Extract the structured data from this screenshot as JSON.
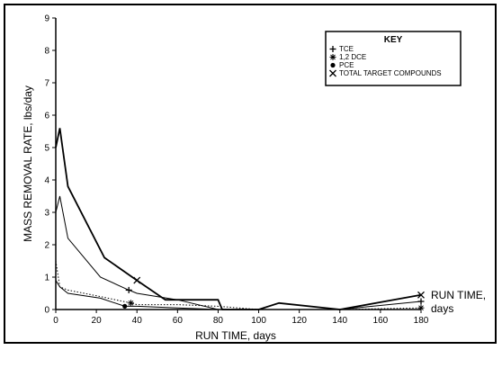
{
  "chart_data": {
    "type": "line",
    "title": "",
    "xlabel": "RUN TIME, days",
    "ylabel": "MASS REMOVAL RATE, lbs/day",
    "xlim": [
      0,
      180
    ],
    "ylim": [
      0,
      9
    ],
    "x_ticks": [
      "0",
      "20",
      "40",
      "60",
      "80",
      "100",
      "120",
      "140",
      "160",
      "180"
    ],
    "y_ticks": [
      "0",
      "1",
      "2",
      "3",
      "4",
      "5",
      "6",
      "7",
      "8",
      "9"
    ],
    "grid": false,
    "legend": {
      "title": "KEY",
      "position": "top-right"
    },
    "annotation": {
      "line1": "RUN TIME,",
      "line2": "days"
    },
    "series": [
      {
        "name": "TCE",
        "marker": "plus",
        "style": "solid-thin",
        "x": [
          0,
          2,
          6,
          22,
          36,
          40,
          60,
          80,
          100,
          140,
          180
        ],
        "y": [
          3.0,
          3.5,
          2.2,
          1.0,
          0.6,
          0.5,
          0.3,
          0.0,
          0.0,
          0.0,
          0.25
        ]
      },
      {
        "name": "1,2 DCE",
        "marker": "star",
        "style": "dotted",
        "x": [
          0,
          2,
          6,
          22,
          37,
          40,
          60,
          80,
          100,
          140,
          180
        ],
        "y": [
          1.5,
          0.7,
          0.6,
          0.4,
          0.2,
          0.15,
          0.15,
          0.1,
          0.0,
          0.0,
          0.05
        ]
      },
      {
        "name": "PCE",
        "marker": "circle",
        "style": "solid-thin",
        "x": [
          0,
          2,
          6,
          22,
          34,
          40,
          60,
          80,
          100,
          140,
          180
        ],
        "y": [
          0.9,
          0.7,
          0.5,
          0.35,
          0.1,
          0.1,
          0.05,
          0.0,
          0.0,
          0.0,
          0.0
        ]
      },
      {
        "name": "TOTAL TARGET COMPOUNDS",
        "marker": "x",
        "style": "solid-thick",
        "x": [
          0,
          2,
          6,
          24,
          40,
          54,
          66,
          80,
          82,
          100,
          110,
          140,
          180
        ],
        "y": [
          5.0,
          5.6,
          3.8,
          1.6,
          0.9,
          0.3,
          0.3,
          0.3,
          0.0,
          0.0,
          0.2,
          0.0,
          0.45
        ]
      }
    ]
  }
}
